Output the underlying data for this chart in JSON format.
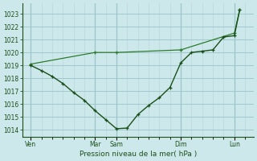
{
  "bg_color": "#cce8ea",
  "grid_color_major": "#a0c8cc",
  "grid_color_minor": "#b8d8dc",
  "line_color_dark": "#1a4f1a",
  "line_color_light": "#2d7a2d",
  "xlabel_text": "Pression niveau de la mer( hPa )",
  "ylim": [
    1013.5,
    1023.8
  ],
  "yticks": [
    1014,
    1015,
    1016,
    1017,
    1018,
    1019,
    1020,
    1021,
    1022,
    1023
  ],
  "xlim": [
    -0.3,
    21.3
  ],
  "xtick_major_positions": [
    0.5,
    6.5,
    8.5,
    14.5,
    19.5
  ],
  "xtick_major_labels": [
    "Ven",
    "Mar",
    "Sam",
    "Dim",
    "Lun"
  ],
  "xtick_minor_positions": [
    0.5,
    1.5,
    2.5,
    3.5,
    4.5,
    5.5,
    6.5,
    7.5,
    8.5,
    9.5,
    10.5,
    11.5,
    12.5,
    13.5,
    14.5,
    15.5,
    16.5,
    17.5,
    18.5,
    19.5,
    20.5
  ],
  "vline_positions": [
    0.5,
    6.5,
    8.5,
    14.5,
    19.5
  ],
  "series1_x": [
    0.5,
    1.5,
    2.5,
    3.5,
    4.5,
    5.5,
    6.5,
    7.5,
    8.5,
    9.5,
    10.5,
    11.5,
    12.5,
    13.5,
    14.5,
    15.5,
    16.5,
    17.5,
    18.5,
    19.5,
    20.0
  ],
  "series1_y": [
    1019.0,
    1018.6,
    1018.15,
    1017.6,
    1016.9,
    1016.3,
    1015.5,
    1014.8,
    1014.1,
    1014.15,
    1015.2,
    1015.9,
    1016.5,
    1017.3,
    1019.2,
    1020.0,
    1020.1,
    1020.2,
    1021.2,
    1021.3,
    1023.3
  ],
  "series2_x": [
    0.5,
    6.5,
    8.5,
    14.5,
    19.5,
    20.0
  ],
  "series2_y": [
    1019.1,
    1020.0,
    1020.0,
    1020.2,
    1021.5,
    1023.3
  ]
}
